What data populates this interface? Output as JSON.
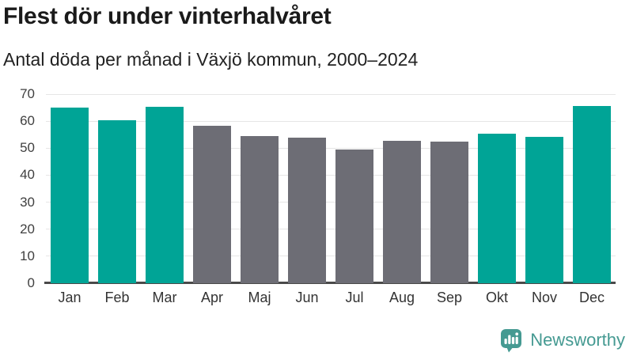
{
  "header": {
    "title": "Flest dör under vinterhalvåret",
    "subtitle": "Antal döda per månad i Växjö kommun, 2000–2024"
  },
  "chart_data": {
    "type": "bar",
    "title": "Flest dör under vinterhalvåret",
    "subtitle": "Antal döda per månad i Växjö kommun, 2000–2024",
    "categories": [
      "Jan",
      "Feb",
      "Mar",
      "Apr",
      "Maj",
      "Jun",
      "Jul",
      "Aug",
      "Sep",
      "Okt",
      "Nov",
      "Dec"
    ],
    "values": [
      65.1,
      60.2,
      65.4,
      58.3,
      54.4,
      53.8,
      49.6,
      52.7,
      52.4,
      55.5,
      54.2,
      65.7
    ],
    "bar_color_roles": [
      "winter",
      "winter",
      "winter",
      "summer",
      "summer",
      "summer",
      "summer",
      "summer",
      "summer",
      "winter",
      "winter",
      "winter"
    ],
    "colors": {
      "winter": "#00a496",
      "summer": "#6d6d75"
    },
    "xlabel": "",
    "ylabel": "",
    "ylim": [
      0,
      70
    ],
    "yticks": [
      0,
      10,
      20,
      30,
      40,
      50,
      60,
      70
    ],
    "grid": true,
    "legend_position": "none",
    "grid_color": "#e6e6e6",
    "axis_line_color": "#4a4a4a"
  },
  "footer": {
    "brand": "Newsworthy",
    "brand_color": "#459a92",
    "logo_icon": "bar-chart-speech-bubble-icon"
  }
}
